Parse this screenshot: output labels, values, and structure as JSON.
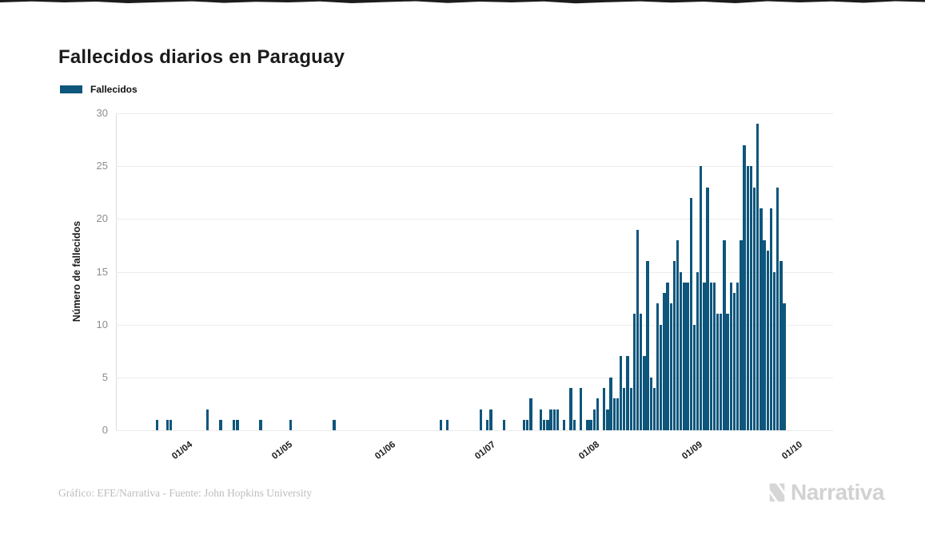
{
  "page": {
    "title": "Fallecidos diarios en Paraguay",
    "footer_credit": "Gráfico: EFE/Narrativa - Fuente: John Hopkins University",
    "brand_name": "Narrativa"
  },
  "legend": {
    "label": "Fallecidos",
    "color": "#0e567c"
  },
  "colors": {
    "bar": "#0e567c",
    "title_text": "#1b1b1b",
    "y_tick_text": "#8c8c8c",
    "x_tick_text": "#1c1c1c",
    "gridline": "#ececec",
    "footer_text": "#bdbdbd",
    "brand_text": "#d2d2d2"
  },
  "chart_data": {
    "type": "bar",
    "title": "Fallecidos diarios en Paraguay",
    "xlabel": "",
    "ylabel": "Número de fallecidos",
    "ylim": [
      0,
      30
    ],
    "yticks": [
      0,
      5,
      10,
      15,
      20,
      25,
      30
    ],
    "grid": true,
    "legend_position": "top-left",
    "bar_color": "#0e567c",
    "x_description": "daily values from mid-March to mid-October, one bar per day",
    "month_ticks": [
      {
        "label": "01/04",
        "index": 20
      },
      {
        "label": "01/05",
        "index": 50
      },
      {
        "label": "01/06",
        "index": 81
      },
      {
        "label": "01/07",
        "index": 111
      },
      {
        "label": "01/08",
        "index": 142
      },
      {
        "label": "01/09",
        "index": 173
      },
      {
        "label": "01/10",
        "index": 203
      }
    ],
    "values": [
      0,
      0,
      0,
      0,
      0,
      0,
      0,
      0,
      0,
      0,
      0,
      0,
      1,
      0,
      0,
      1,
      1,
      0,
      0,
      0,
      0,
      0,
      0,
      0,
      0,
      0,
      0,
      2,
      0,
      0,
      0,
      1,
      0,
      0,
      0,
      1,
      1,
      0,
      0,
      0,
      0,
      0,
      0,
      1,
      0,
      0,
      0,
      0,
      0,
      0,
      0,
      0,
      1,
      0,
      0,
      0,
      0,
      0,
      0,
      0,
      0,
      0,
      0,
      0,
      0,
      1,
      0,
      0,
      0,
      0,
      0,
      0,
      0,
      0,
      0,
      0,
      0,
      0,
      0,
      0,
      0,
      0,
      0,
      0,
      0,
      0,
      0,
      0,
      0,
      0,
      0,
      0,
      0,
      0,
      0,
      0,
      0,
      1,
      0,
      1,
      0,
      0,
      0,
      0,
      0,
      0,
      0,
      0,
      0,
      2,
      0,
      1,
      2,
      0,
      0,
      0,
      1,
      0,
      0,
      0,
      0,
      0,
      1,
      1,
      3,
      0,
      0,
      2,
      1,
      1,
      2,
      2,
      2,
      0,
      1,
      0,
      4,
      1,
      0,
      4,
      0,
      1,
      1,
      2,
      3,
      0,
      4,
      2,
      5,
      3,
      3,
      7,
      4,
      7,
      4,
      11,
      19,
      11,
      7,
      16,
      5,
      4,
      12,
      10,
      13,
      14,
      12,
      16,
      18,
      15,
      14,
      14,
      22,
      10,
      15,
      25,
      14,
      23,
      14,
      14,
      11,
      11,
      18,
      11,
      14,
      13,
      14,
      18,
      27,
      25,
      25,
      23,
      29,
      21,
      18,
      17,
      21,
      15,
      23,
      16,
      12,
      0,
      0,
      0,
      0,
      0,
      0,
      0,
      0,
      0,
      0,
      0,
      0,
      0,
      0
    ]
  }
}
